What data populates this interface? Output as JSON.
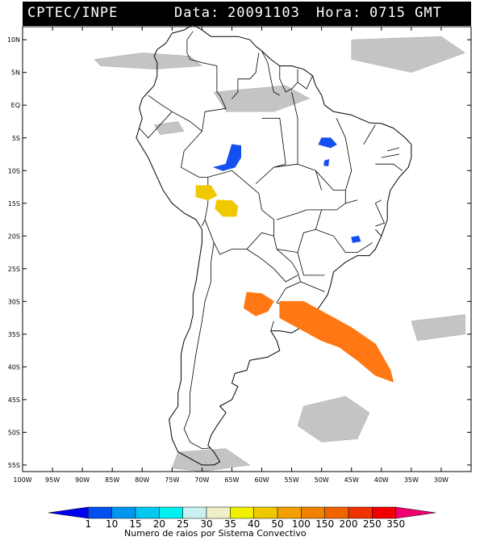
{
  "header": {
    "source": "CPTEC/INPE",
    "date_label": "Data:",
    "date_value": "20091103",
    "hour_label": "Hora:",
    "hour_value": "0715 GMT"
  },
  "map": {
    "lon_range": [
      -100,
      -25
    ],
    "lat_range": [
      -56,
      12
    ],
    "lat_ticks": [
      {
        "value": 10,
        "label": "10N"
      },
      {
        "value": 5,
        "label": "5N"
      },
      {
        "value": 0,
        "label": "EQ"
      },
      {
        "value": -5,
        "label": "5S"
      },
      {
        "value": -10,
        "label": "10S"
      },
      {
        "value": -15,
        "label": "15S"
      },
      {
        "value": -20,
        "label": "20S"
      },
      {
        "value": -25,
        "label": "25S"
      },
      {
        "value": -30,
        "label": "30S"
      },
      {
        "value": -35,
        "label": "35S"
      },
      {
        "value": -40,
        "label": "40S"
      },
      {
        "value": -45,
        "label": "45S"
      },
      {
        "value": -50,
        "label": "50S"
      },
      {
        "value": -55,
        "label": "55S"
      }
    ],
    "lon_ticks": [
      {
        "value": -100,
        "label": "100W"
      },
      {
        "value": -95,
        "label": "95W"
      },
      {
        "value": -90,
        "label": "90W"
      },
      {
        "value": -85,
        "label": "85W"
      },
      {
        "value": -80,
        "label": "80W"
      },
      {
        "value": -75,
        "label": "75W"
      },
      {
        "value": -70,
        "label": "70W"
      },
      {
        "value": -65,
        "label": "65W"
      },
      {
        "value": -60,
        "label": "60W"
      },
      {
        "value": -55,
        "label": "55W"
      },
      {
        "value": -50,
        "label": "50W"
      },
      {
        "value": -45,
        "label": "45W"
      },
      {
        "value": -40,
        "label": "40W"
      },
      {
        "value": -35,
        "label": "35W"
      },
      {
        "value": -30,
        "label": "30W"
      }
    ],
    "systems": [
      {
        "name": "amazon-west-system",
        "color": "#1450f0",
        "points": [
          [
            -65,
            -6
          ],
          [
            -63.5,
            -6.2
          ],
          [
            -63.5,
            -8
          ],
          [
            -64.5,
            -9.5
          ],
          [
            -66.5,
            -10
          ],
          [
            -68,
            -9.5
          ],
          [
            -66,
            -9
          ],
          [
            -65.5,
            -7.5
          ]
        ]
      },
      {
        "name": "maranhao-system",
        "color": "#1450f0",
        "points": [
          [
            -50,
            -5
          ],
          [
            -48.5,
            -5
          ],
          [
            -47.5,
            -6
          ],
          [
            -48.5,
            -6.5
          ],
          [
            -50.5,
            -6
          ]
        ]
      },
      {
        "name": "maranhao-south-system",
        "color": "#1450f0",
        "points": [
          [
            -49.5,
            -8.5
          ],
          [
            -48.8,
            -8.3
          ],
          [
            -48.9,
            -9.3
          ],
          [
            -49.6,
            -9.2
          ]
        ]
      },
      {
        "name": "minas-system",
        "color": "#1450f0",
        "points": [
          [
            -45,
            -20.2
          ],
          [
            -43.8,
            -20
          ],
          [
            -43.5,
            -20.8
          ],
          [
            -44.8,
            -21
          ]
        ]
      },
      {
        "name": "bolivia-system-1",
        "color": "#f0c800",
        "points": [
          [
            -71,
            -12.3
          ],
          [
            -68.5,
            -12.3
          ],
          [
            -67.5,
            -13.8
          ],
          [
            -69,
            -14.5
          ],
          [
            -71,
            -14
          ]
        ]
      },
      {
        "name": "bolivia-system-2",
        "color": "#f0c800",
        "points": [
          [
            -67.5,
            -14.5
          ],
          [
            -65,
            -14.6
          ],
          [
            -64,
            -15.5
          ],
          [
            -64.3,
            -17
          ],
          [
            -66.5,
            -17
          ],
          [
            -67.8,
            -15.8
          ]
        ]
      },
      {
        "name": "south-atlantic-system",
        "color": "#ff7814",
        "points": [
          [
            -57,
            -30
          ],
          [
            -53,
            -30
          ],
          [
            -49,
            -32
          ],
          [
            -45,
            -34
          ],
          [
            -41,
            -36.5
          ],
          [
            -38.5,
            -40.5
          ],
          [
            -38,
            -42.3
          ],
          [
            -41,
            -41.3
          ],
          [
            -44,
            -39
          ],
          [
            -47,
            -37
          ],
          [
            -50,
            -36
          ],
          [
            -54,
            -34
          ],
          [
            -57,
            -32.5
          ]
        ]
      },
      {
        "name": "argentina-system",
        "color": "#ff7814",
        "points": [
          [
            -62.5,
            -28.6
          ],
          [
            -60,
            -28.8
          ],
          [
            -58,
            -30
          ],
          [
            -59,
            -31.5
          ],
          [
            -61,
            -32.2
          ],
          [
            -63,
            -31
          ]
        ]
      }
    ],
    "clouds": [
      {
        "name": "cloud-caribbean",
        "points": [
          [
            -88,
            7
          ],
          [
            -80,
            8
          ],
          [
            -72,
            7.5
          ],
          [
            -70,
            6
          ],
          [
            -78,
            5.5
          ],
          [
            -87,
            6
          ]
        ]
      },
      {
        "name": "cloud-atlantic-north",
        "points": [
          [
            -45,
            10
          ],
          [
            -30,
            10.5
          ],
          [
            -26,
            8
          ],
          [
            -35,
            5
          ],
          [
            -45,
            7
          ]
        ]
      },
      {
        "name": "cloud-amazon",
        "points": [
          [
            -68,
            2
          ],
          [
            -56,
            3
          ],
          [
            -52,
            1
          ],
          [
            -58,
            -1
          ],
          [
            -66,
            -1
          ]
        ]
      },
      {
        "name": "cloud-colombia-coast",
        "points": [
          [
            -78,
            -3
          ],
          [
            -74,
            -2.5
          ],
          [
            -73,
            -4
          ],
          [
            -77,
            -4.5
          ]
        ]
      },
      {
        "name": "cloud-patagonia-east",
        "points": [
          [
            -53,
            -46
          ],
          [
            -46,
            -44.5
          ],
          [
            -42,
            -47
          ],
          [
            -44,
            -51
          ],
          [
            -50,
            -51.5
          ],
          [
            -54,
            -49
          ]
        ]
      },
      {
        "name": "cloud-south-atlantic",
        "points": [
          [
            -35,
            -33
          ],
          [
            -26,
            -32
          ],
          [
            -26,
            -35
          ],
          [
            -34,
            -36
          ]
        ]
      },
      {
        "name": "cloud-tierra-del-fuego",
        "points": [
          [
            -74,
            -53
          ],
          [
            -66,
            -52.5
          ],
          [
            -62,
            -55
          ],
          [
            -70,
            -56
          ],
          [
            -75,
            -55.5
          ]
        ]
      }
    ]
  },
  "colorbar": {
    "ticks": [
      "1",
      "10",
      "15",
      "20",
      "25",
      "30",
      "35",
      "40",
      "50",
      "100",
      "150",
      "200",
      "250",
      "350"
    ],
    "colors": [
      "#0000f0",
      "#0050f0",
      "#0096f0",
      "#00c8f0",
      "#00f0f0",
      "#c8f0f0",
      "#f0f0c8",
      "#f0f000",
      "#f0c800",
      "#f0a000",
      "#f08200",
      "#f06400",
      "#f03200",
      "#f00000",
      "#f0006e"
    ],
    "label": "Numero de raios por Sistema Convectivo"
  }
}
